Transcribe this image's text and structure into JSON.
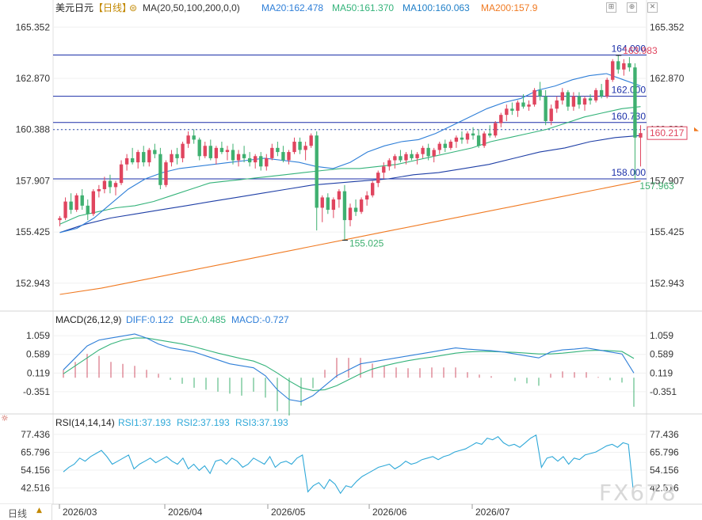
{
  "header": {
    "symbol": "美元日元",
    "period": "【日线】",
    "ma_label": "MA(20,50,100,200,0,0)",
    "ma20": "MA20:162.478",
    "ma50": "MA50:161.370",
    "ma100": "MA100:160.063",
    "ma200": "MA200:157.9"
  },
  "macd_header": {
    "title": "MACD(26,12,9)",
    "diff": "DIFF:0.122",
    "dea": "DEA:0.485",
    "macd": "MACD:-0.727"
  },
  "rsi_header": {
    "title": "RSI(14,14,14)",
    "rsi1": "RSI1:37.193",
    "rsi2": "RSI2:37.193",
    "rsi3": "RSI3:37.193"
  },
  "watermark": "FX678",
  "bottom_tab": "日线",
  "toolbar_icons": [
    "expand-icon",
    "crosshair-icon",
    "close-icon"
  ],
  "colors": {
    "up": "#e0455f",
    "down": "#3fb070",
    "ma20": "#2f7fd8",
    "ma50": "#34b37a",
    "ma100": "#1f3fa6",
    "ma200": "#f07a22",
    "level": "#1b2fa8",
    "rsi": "#2ea8d8"
  },
  "chart_data": [
    {
      "type": "candlestick",
      "title": "美元日元【日线】",
      "x_ticks": [
        "2026/03",
        "2026/04",
        "2026/05",
        "2026/06",
        "2026/07"
      ],
      "y_ticks": [
        165.352,
        162.87,
        160.388,
        157.907,
        155.425,
        152.943
      ],
      "ylim": [
        151.9,
        165.9
      ],
      "horizontal_levels": [
        164.0,
        162.0,
        160.73,
        158.0
      ],
      "current_price": 160.217,
      "dotted_reference": 160.388,
      "annotations": {
        "high": 163.983,
        "low_may": 155.025,
        "low_recent": 157.963
      },
      "candles": [
        [
          156.0,
          156.2,
          155.7,
          156.1
        ],
        [
          156.1,
          157.1,
          156.0,
          156.9
        ],
        [
          156.9,
          157.3,
          156.3,
          156.5
        ],
        [
          156.5,
          157.3,
          156.4,
          157.2
        ],
        [
          157.2,
          157.5,
          156.5,
          156.7
        ],
        [
          156.7,
          157.0,
          156.0,
          156.3
        ],
        [
          156.3,
          157.5,
          156.2,
          157.4
        ],
        [
          157.4,
          157.7,
          157.1,
          157.5
        ],
        [
          157.5,
          158.1,
          157.3,
          157.9
        ],
        [
          157.9,
          158.2,
          157.3,
          157.6
        ],
        [
          157.6,
          157.9,
          157.2,
          157.8
        ],
        [
          157.8,
          158.9,
          157.7,
          158.7
        ],
        [
          158.7,
          159.2,
          158.4,
          159.0
        ],
        [
          159.0,
          159.5,
          158.7,
          158.8
        ],
        [
          158.8,
          159.4,
          158.5,
          159.3
        ],
        [
          159.3,
          159.6,
          158.6,
          158.8
        ],
        [
          158.8,
          159.5,
          158.6,
          159.4
        ],
        [
          159.4,
          159.7,
          159.0,
          159.2
        ],
        [
          159.2,
          159.5,
          157.5,
          157.7
        ],
        [
          157.7,
          158.9,
          157.6,
          158.8
        ],
        [
          158.8,
          159.4,
          158.6,
          159.2
        ],
        [
          159.2,
          159.5,
          158.7,
          159.0
        ],
        [
          159.0,
          159.8,
          158.8,
          159.7
        ],
        [
          159.7,
          160.3,
          159.5,
          160.1
        ],
        [
          160.1,
          160.4,
          159.7,
          159.9
        ],
        [
          159.9,
          160.0,
          158.9,
          159.1
        ],
        [
          159.1,
          159.8,
          159.0,
          159.6
        ],
        [
          159.6,
          159.9,
          158.9,
          159.0
        ],
        [
          159.0,
          159.6,
          158.7,
          159.5
        ],
        [
          159.5,
          159.8,
          159.2,
          159.3
        ],
        [
          159.3,
          159.6,
          158.9,
          159.4
        ],
        [
          159.4,
          159.7,
          158.7,
          158.9
        ],
        [
          158.9,
          159.4,
          158.6,
          159.2
        ],
        [
          159.2,
          159.6,
          158.8,
          159.0
        ],
        [
          159.0,
          159.3,
          158.6,
          158.8
        ],
        [
          158.8,
          159.2,
          158.5,
          159.1
        ],
        [
          159.1,
          159.3,
          158.4,
          158.6
        ],
        [
          158.6,
          159.2,
          158.4,
          159.0
        ],
        [
          159.0,
          159.7,
          158.9,
          159.5
        ],
        [
          159.5,
          159.8,
          159.1,
          159.3
        ],
        [
          159.3,
          159.6,
          158.8,
          158.9
        ],
        [
          158.9,
          159.4,
          158.7,
          159.3
        ],
        [
          159.3,
          160.0,
          159.2,
          159.8
        ],
        [
          159.8,
          160.0,
          159.2,
          159.4
        ],
        [
          159.4,
          159.8,
          158.9,
          159.6
        ],
        [
          159.6,
          160.2,
          159.5,
          160.1
        ],
        [
          160.1,
          160.3,
          155.5,
          156.6
        ],
        [
          156.6,
          157.2,
          155.9,
          157.1
        ],
        [
          157.1,
          157.3,
          156.3,
          156.5
        ],
        [
          156.5,
          157.1,
          156.1,
          157.0
        ],
        [
          157.0,
          157.5,
          156.6,
          157.4
        ],
        [
          157.4,
          157.7,
          155.0,
          156.0
        ],
        [
          156.0,
          156.8,
          155.7,
          156.6
        ],
        [
          156.6,
          157.0,
          156.2,
          156.4
        ],
        [
          156.4,
          157.1,
          156.3,
          157.0
        ],
        [
          157.0,
          157.4,
          156.7,
          157.2
        ],
        [
          157.2,
          157.9,
          157.1,
          157.8
        ],
        [
          157.8,
          158.4,
          157.6,
          158.3
        ],
        [
          158.3,
          158.8,
          158.0,
          158.6
        ],
        [
          158.6,
          159.0,
          158.4,
          158.9
        ],
        [
          158.9,
          159.2,
          158.5,
          159.1
        ],
        [
          159.1,
          159.4,
          158.8,
          158.9
        ],
        [
          158.9,
          159.3,
          158.7,
          159.2
        ],
        [
          159.2,
          159.4,
          158.9,
          159.0
        ],
        [
          159.0,
          159.3,
          158.7,
          159.2
        ],
        [
          159.2,
          159.6,
          159.0,
          159.5
        ],
        [
          159.5,
          159.7,
          158.9,
          159.1
        ],
        [
          159.1,
          159.5,
          158.8,
          159.4
        ],
        [
          159.4,
          159.8,
          159.2,
          159.7
        ],
        [
          159.7,
          159.9,
          159.3,
          159.5
        ],
        [
          159.5,
          159.9,
          159.4,
          159.8
        ],
        [
          159.8,
          160.1,
          159.5,
          160.0
        ],
        [
          160.0,
          160.3,
          159.7,
          159.9
        ],
        [
          159.9,
          160.3,
          159.7,
          160.2
        ],
        [
          160.2,
          160.5,
          159.9,
          160.1
        ],
        [
          160.1,
          160.4,
          159.5,
          159.6
        ],
        [
          159.6,
          160.3,
          159.5,
          160.2
        ],
        [
          160.2,
          160.6,
          160.0,
          160.1
        ],
        [
          160.1,
          160.8,
          160.0,
          160.7
        ],
        [
          160.7,
          161.2,
          160.5,
          161.1
        ],
        [
          161.1,
          161.6,
          160.8,
          161.4
        ],
        [
          161.4,
          161.7,
          161.1,
          161.3
        ],
        [
          161.3,
          161.8,
          161.0,
          161.7
        ],
        [
          161.7,
          162.1,
          161.4,
          161.5
        ],
        [
          161.5,
          161.8,
          161.3,
          161.6
        ],
        [
          161.6,
          162.4,
          161.5,
          162.3
        ],
        [
          162.3,
          162.7,
          161.8,
          162.0
        ],
        [
          162.0,
          162.3,
          160.6,
          160.8
        ],
        [
          160.8,
          161.6,
          160.6,
          161.4
        ],
        [
          161.4,
          162.0,
          161.2,
          161.8
        ],
        [
          161.8,
          162.4,
          161.6,
          162.2
        ],
        [
          162.2,
          162.3,
          161.3,
          161.5
        ],
        [
          161.5,
          162.2,
          161.3,
          162.0
        ],
        [
          162.0,
          162.2,
          161.4,
          161.6
        ],
        [
          161.6,
          162.0,
          161.3,
          161.9
        ],
        [
          161.9,
          162.1,
          161.6,
          161.8
        ],
        [
          161.8,
          162.4,
          161.7,
          162.3
        ],
        [
          162.3,
          162.6,
          161.9,
          162.0
        ],
        [
          162.0,
          162.9,
          161.9,
          162.8
        ],
        [
          162.8,
          163.8,
          162.7,
          163.7
        ],
        [
          163.7,
          163.98,
          163.1,
          163.3
        ],
        [
          163.3,
          163.8,
          163.0,
          163.6
        ],
        [
          163.6,
          163.9,
          163.2,
          163.4
        ],
        [
          163.4,
          163.6,
          157.96,
          160.0
        ],
        [
          160.0,
          160.6,
          158.6,
          160.217
        ]
      ],
      "ma20": [
        155.4,
        155.6,
        156.1,
        156.8,
        157.5,
        158.0,
        158.3,
        158.5,
        158.6,
        158.7,
        158.8,
        158.9,
        159.0,
        158.9,
        158.8,
        158.6,
        158.5,
        158.8,
        159.3,
        159.6,
        159.8,
        159.9,
        160.2,
        160.6,
        161.0,
        161.4,
        161.7,
        161.9,
        162.3,
        162.5,
        162.8,
        163.0,
        163.1,
        162.8,
        162.5
      ],
      "ma50": [
        155.8,
        156.2,
        156.4,
        156.6,
        156.7,
        156.9,
        157.2,
        157.5,
        157.8,
        157.9,
        158.0,
        158.1,
        158.2,
        158.3,
        158.4,
        158.5,
        158.5,
        158.6,
        158.7,
        158.9,
        159.1,
        159.3,
        159.5,
        159.8,
        160.0,
        160.2,
        160.4,
        160.7,
        161.0,
        161.2,
        161.4,
        161.5
      ],
      "ma100": [
        155.4,
        155.8,
        156.1,
        156.3,
        156.5,
        156.7,
        156.9,
        157.1,
        157.3,
        157.5,
        157.7,
        157.8,
        157.9,
        158.0,
        158.2,
        158.3,
        158.5,
        158.7,
        159.0,
        159.3,
        159.5,
        159.8,
        160.0,
        160.1
      ],
      "ma200": [
        152.4,
        152.7,
        153.1,
        153.5,
        153.9,
        154.3,
        154.7,
        155.1,
        155.5,
        155.9,
        156.3,
        156.7,
        157.1,
        157.5,
        157.9
      ]
    },
    {
      "type": "macd",
      "title": "MACD(26,12,9)",
      "y_ticks": [
        1.059,
        0.589,
        0.119,
        -0.351
      ],
      "ylim": [
        -0.85,
        1.3
      ],
      "diff": [
        0.2,
        0.5,
        0.8,
        0.95,
        1.0,
        1.05,
        1.1,
        1.0,
        0.85,
        0.75,
        0.7,
        0.65,
        0.55,
        0.45,
        0.35,
        0.3,
        0.25,
        0.05,
        -0.3,
        -0.55,
        -0.6,
        -0.45,
        -0.2,
        0.05,
        0.2,
        0.35,
        0.4,
        0.45,
        0.5,
        0.55,
        0.6,
        0.65,
        0.7,
        0.75,
        0.72,
        0.7,
        0.68,
        0.65,
        0.6,
        0.55,
        0.5,
        0.65,
        0.7,
        0.72,
        0.75,
        0.7,
        0.65,
        0.6,
        0.12
      ],
      "dea": [
        0.1,
        0.3,
        0.5,
        0.7,
        0.85,
        0.95,
        1.0,
        1.0,
        0.95,
        0.9,
        0.85,
        0.78,
        0.7,
        0.62,
        0.55,
        0.48,
        0.42,
        0.3,
        0.12,
        -0.08,
        -0.25,
        -0.32,
        -0.3,
        -0.2,
        -0.05,
        0.1,
        0.22,
        0.3,
        0.37,
        0.43,
        0.48,
        0.52,
        0.57,
        0.62,
        0.65,
        0.66,
        0.66,
        0.65,
        0.64,
        0.62,
        0.6,
        0.6,
        0.62,
        0.65,
        0.68,
        0.69,
        0.68,
        0.66,
        0.485
      ],
      "macd": [
        0.2,
        0.4,
        0.6,
        0.55,
        0.4,
        0.35,
        0.3,
        0.2,
        0.1,
        -0.05,
        -0.15,
        -0.25,
        -0.3,
        -0.35,
        -0.4,
        -0.45,
        -0.35,
        -0.5,
        -0.84,
        -0.95,
        -0.7,
        -0.26,
        0.2,
        0.5,
        0.5,
        0.5,
        0.36,
        0.3,
        0.26,
        0.24,
        0.24,
        0.26,
        0.26,
        0.26,
        0.14,
        0.08,
        0.04,
        0.0,
        -0.08,
        -0.14,
        -0.2,
        0.1,
        0.16,
        0.14,
        0.14,
        0.02,
        -0.06,
        -0.12,
        -0.727
      ]
    },
    {
      "type": "line",
      "title": "RSI(14,14,14)",
      "y_ticks": [
        77.436,
        65.796,
        54.156,
        42.516
      ],
      "ylim": [
        33.5,
        81.0
      ],
      "rsi": [
        53,
        56,
        58,
        62,
        60,
        63,
        65,
        67,
        63,
        58,
        60,
        62,
        64,
        55,
        58,
        60,
        62,
        59,
        61,
        63,
        60,
        58,
        62,
        55,
        58,
        54,
        57,
        52,
        60,
        61,
        58,
        62,
        60,
        56,
        58,
        62,
        60,
        58,
        63,
        56,
        59,
        60,
        58,
        62,
        64,
        40,
        44,
        46,
        42,
        48,
        45,
        39,
        44,
        43,
        47,
        50,
        52,
        54,
        56,
        57,
        58,
        55,
        57,
        60,
        58,
        59,
        61,
        62,
        63,
        61,
        63,
        64,
        66,
        67,
        68,
        70,
        72,
        71,
        75,
        74,
        76,
        72,
        70,
        71,
        69,
        72,
        75,
        77,
        56,
        62,
        63,
        60,
        63,
        58,
        62,
        61,
        64,
        65,
        66,
        68,
        70,
        71,
        69,
        72,
        71,
        37.193
      ]
    }
  ]
}
